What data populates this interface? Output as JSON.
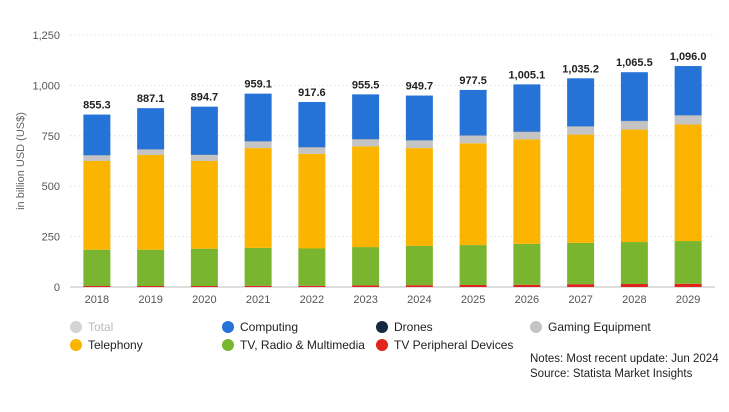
{
  "chart_data": {
    "type": "bar",
    "stacked": true,
    "title": "",
    "xlabel": "",
    "ylabel": "in billion USD (US$)",
    "ylim": [
      0,
      1250
    ],
    "yticks": [
      0,
      250,
      500,
      750,
      1000,
      1250
    ],
    "grid": true,
    "categories": [
      "2018",
      "2019",
      "2020",
      "2021",
      "2022",
      "2023",
      "2024",
      "2025",
      "2026",
      "2027",
      "2028",
      "2029"
    ],
    "totals": [
      855.3,
      887.1,
      894.7,
      959.1,
      917.6,
      955.5,
      949.7,
      977.5,
      1005.1,
      1035.2,
      1065.5,
      1096.0
    ],
    "total_labels": [
      "855.3",
      "887.1",
      "894.7",
      "959.1",
      "917.6",
      "955.5",
      "949.7",
      "977.5",
      "1,005.1",
      "1,035.2",
      "1,065.5",
      "1,096.0"
    ],
    "series": [
      {
        "name": "TV Peripheral Devices",
        "color": "#e0241c",
        "values": [
          5,
          5,
          5,
          6,
          6,
          8,
          9,
          10,
          11,
          14,
          15,
          16
        ]
      },
      {
        "name": "TV, Radio & Multimedia",
        "color": "#7ab52f",
        "values": [
          180,
          180,
          185,
          188,
          185,
          190,
          195,
          198,
          203,
          205,
          208,
          212
        ]
      },
      {
        "name": "Telephony",
        "color": "#fbb400",
        "values": [
          440,
          470,
          435,
          495,
          470,
          500,
          485,
          505,
          518,
          537,
          558,
          578
        ]
      },
      {
        "name": "Gaming Equipment",
        "color": "#c4c4c4",
        "values": [
          28,
          27,
          30,
          33,
          32,
          35,
          38,
          38,
          38,
          40,
          42,
          45
        ]
      },
      {
        "name": "Drones",
        "color": "#152842",
        "values": [
          1,
          1,
          1,
          1,
          1,
          1,
          1,
          1,
          1,
          1,
          1,
          1
        ]
      },
      {
        "name": "Computing",
        "color": "#2673d8",
        "values": [
          201.3,
          204.1,
          238.7,
          236.1,
          223.6,
          221.5,
          221.7,
          225.5,
          234.1,
          238.2,
          241.5,
          244.0
        ]
      }
    ]
  },
  "legend": [
    {
      "label": "Total",
      "color": "#d4d4d4",
      "muted": true
    },
    {
      "label": "Computing",
      "color": "#2673d8",
      "muted": false
    },
    {
      "label": "Drones",
      "color": "#152842",
      "muted": false
    },
    {
      "label": "Gaming Equipment",
      "color": "#c4c4c4",
      "muted": false
    },
    {
      "label": "Telephony",
      "color": "#fbb400",
      "muted": false
    },
    {
      "label": "TV, Radio & Multimedia",
      "color": "#7ab52f",
      "muted": false
    },
    {
      "label": "TV Peripheral Devices",
      "color": "#e0241c",
      "muted": false
    }
  ],
  "notes": {
    "line1": "Notes: Most recent update: Jun 2024",
    "line2": "Source: Statista Market Insights"
  }
}
